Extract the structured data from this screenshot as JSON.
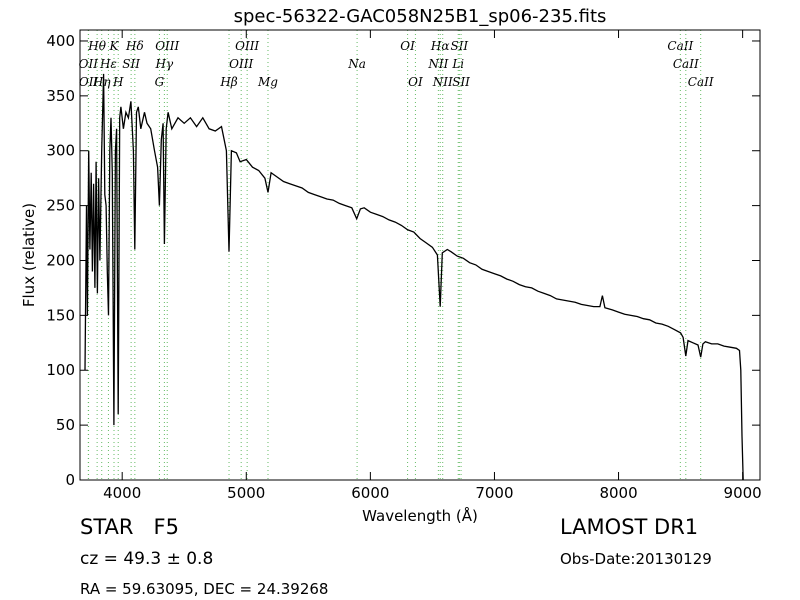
{
  "chart_data": {
    "type": "line",
    "title": "spec-56322-GAC058N25B1_sp06-235.fits",
    "x_label": "Wavelength (Å)",
    "y_label": "Flux (relative)",
    "xlim": [
      3660,
      9140
    ],
    "ylim": [
      0,
      410
    ],
    "xticks": [
      4000,
      5000,
      6000,
      7000,
      8000,
      9000
    ],
    "yticks": [
      0,
      50,
      100,
      150,
      200,
      250,
      300,
      350,
      400
    ],
    "color": "#000000",
    "line_color": "#66bb66",
    "x": [
      3700,
      3712,
      3720,
      3730,
      3740,
      3750,
      3760,
      3770,
      3780,
      3790,
      3800,
      3810,
      3820,
      3835,
      3850,
      3860,
      3870,
      3880,
      3890,
      3900,
      3910,
      3920,
      3933,
      3945,
      3955,
      3968,
      3980,
      3990,
      4010,
      4030,
      4050,
      4070,
      4090,
      4102,
      4115,
      4130,
      4150,
      4180,
      4200,
      4230,
      4260,
      4285,
      4300,
      4315,
      4330,
      4340,
      4355,
      4370,
      4400,
      4450,
      4500,
      4550,
      4600,
      4650,
      4700,
      4750,
      4800,
      4840,
      4861,
      4880,
      4920,
      4950,
      5000,
      5050,
      5100,
      5150,
      5175,
      5200,
      5250,
      5300,
      5350,
      5400,
      5450,
      5500,
      5550,
      5600,
      5650,
      5700,
      5750,
      5800,
      5850,
      5890,
      5920,
      5950,
      6000,
      6050,
      6100,
      6150,
      6200,
      6250,
      6300,
      6350,
      6400,
      6450,
      6500,
      6540,
      6563,
      6580,
      6620,
      6650,
      6700,
      6750,
      6800,
      6850,
      6900,
      6950,
      7000,
      7050,
      7100,
      7150,
      7200,
      7250,
      7300,
      7350,
      7400,
      7450,
      7500,
      7550,
      7600,
      7650,
      7700,
      7750,
      7800,
      7850,
      7870,
      7890,
      7950,
      8000,
      8050,
      8100,
      8150,
      8200,
      8250,
      8300,
      8350,
      8400,
      8450,
      8500,
      8520,
      8542,
      8560,
      8600,
      8640,
      8662,
      8680,
      8700,
      8750,
      8800,
      8850,
      8900,
      8950,
      8975,
      8985,
      8995,
      9005
    ],
    "values": [
      100,
      250,
      150,
      300,
      210,
      280,
      190,
      270,
      175,
      290,
      170,
      275,
      200,
      300,
      370,
      260,
      250,
      190,
      150,
      300,
      330,
      280,
      50,
      300,
      320,
      60,
      330,
      340,
      320,
      335,
      330,
      345,
      300,
      210,
      335,
      340,
      320,
      335,
      325,
      320,
      300,
      285,
      250,
      310,
      325,
      215,
      320,
      335,
      320,
      330,
      325,
      330,
      322,
      330,
      320,
      318,
      322,
      300,
      208,
      300,
      298,
      290,
      292,
      285,
      282,
      275,
      262,
      280,
      276,
      272,
      270,
      268,
      266,
      262,
      260,
      258,
      256,
      255,
      252,
      250,
      248,
      238,
      247,
      248,
      244,
      242,
      240,
      237,
      235,
      232,
      228,
      226,
      220,
      216,
      212,
      205,
      158,
      207,
      210,
      208,
      204,
      202,
      198,
      196,
      192,
      190,
      188,
      186,
      183,
      181,
      178,
      176,
      175,
      172,
      170,
      168,
      165,
      164,
      163,
      162,
      160,
      159,
      158,
      158,
      168,
      157,
      155,
      153,
      151,
      150,
      149,
      147,
      146,
      143,
      142,
      140,
      137,
      134,
      130,
      113,
      127,
      125,
      123,
      112,
      124,
      126,
      124,
      124,
      122,
      121,
      120,
      118,
      100,
      40,
      0
    ],
    "spectral_lines": [
      [
        {
          "name": "Hθ",
          "wavelength": 3798
        },
        {
          "name": "K",
          "wavelength": 3934
        },
        {
          "name": "Hδ",
          "wavelength": 4102
        },
        {
          "name": "OIII",
          "wavelength": 4363
        },
        {
          "name": "OIII",
          "wavelength": 5007
        },
        {
          "name": "OI",
          "wavelength": 6300
        },
        {
          "name": "Hα",
          "wavelength": 6563
        },
        {
          "name": "SII",
          "wavelength": 6717
        },
        {
          "name": "CaII",
          "wavelength": 8498
        }
      ],
      [
        {
          "name": "OII",
          "wavelength": 3727
        },
        {
          "name": "Hε",
          "wavelength": 3889
        },
        {
          "name": "SII",
          "wavelength": 4072
        },
        {
          "name": "Hγ",
          "wavelength": 4340
        },
        {
          "name": "OIII",
          "wavelength": 4959
        },
        {
          "name": "Na",
          "wavelength": 5893
        },
        {
          "name": "NII",
          "wavelength": 6548
        },
        {
          "name": "Li",
          "wavelength": 6708
        },
        {
          "name": "CaII",
          "wavelength": 8542
        }
      ],
      [
        {
          "name": "OII",
          "wavelength": 3729
        },
        {
          "name": "Hη",
          "wavelength": 3835
        },
        {
          "name": "H",
          "wavelength": 3968
        },
        {
          "name": "G",
          "wavelength": 4300
        },
        {
          "name": "Hβ",
          "wavelength": 4861
        },
        {
          "name": "Mg",
          "wavelength": 5175
        },
        {
          "name": "OI",
          "wavelength": 6363
        },
        {
          "name": "NII",
          "wavelength": 6583
        },
        {
          "name": "SII",
          "wavelength": 6731
        },
        {
          "name": "CaII",
          "wavelength": 8662
        }
      ]
    ],
    "object_class": "STAR   F5",
    "redshift": "cz = 49.3 ± 0.8",
    "coordinates": "RA = 59.63095, DEC = 24.39268",
    "survey": "LAMOST DR1",
    "obs_date": "Obs-Date:20130129"
  }
}
